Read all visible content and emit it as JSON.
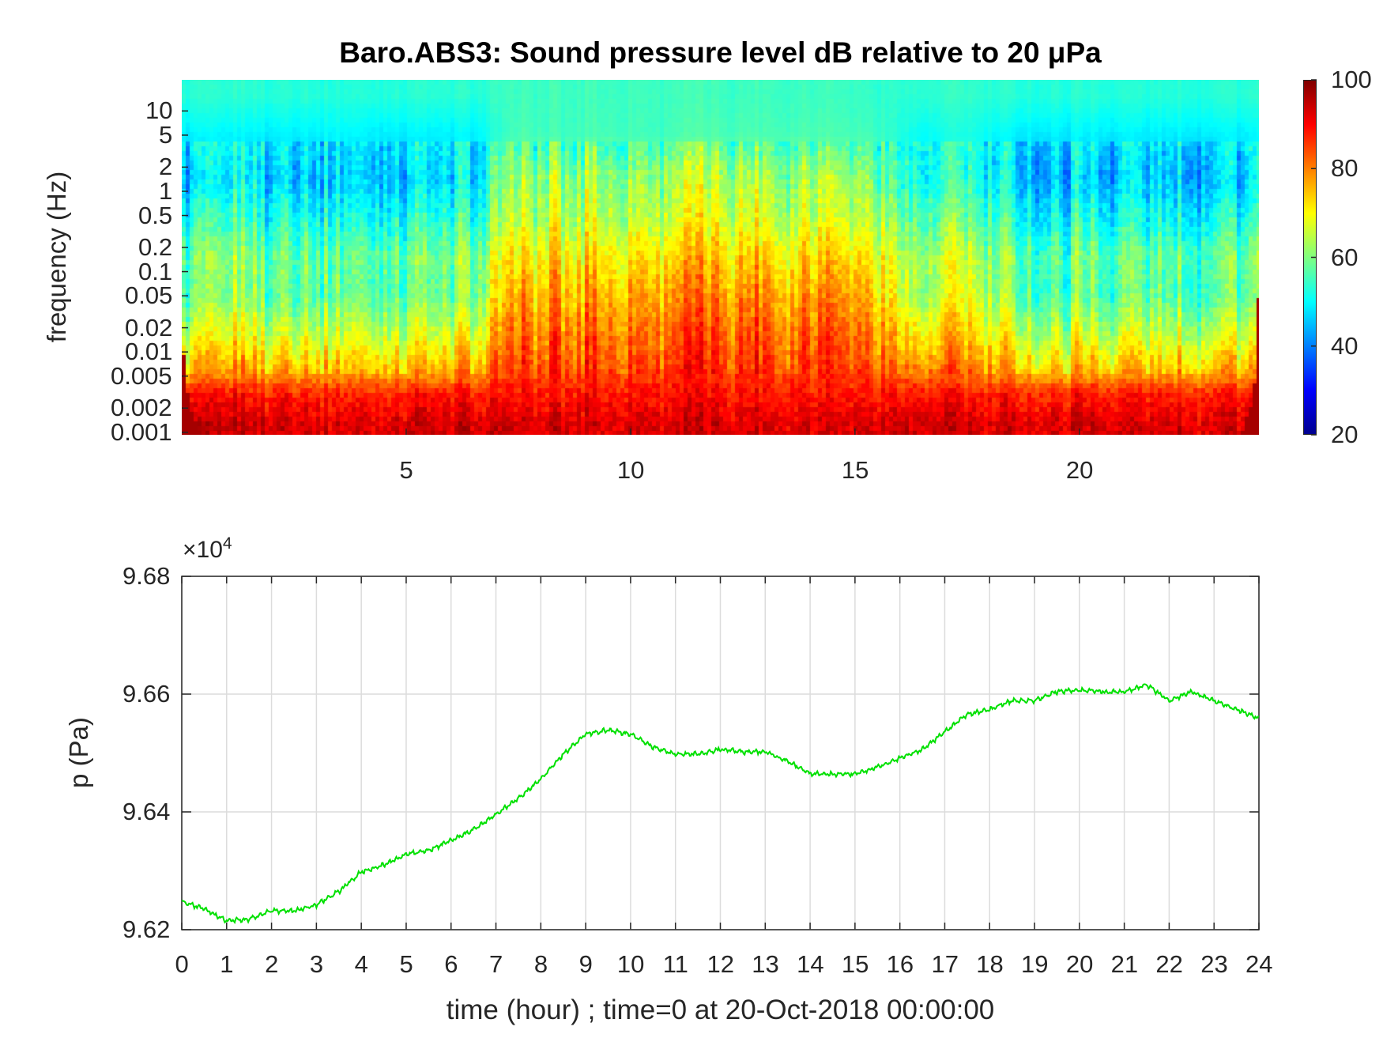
{
  "chart_data": [
    {
      "type": "heatmap",
      "title": "Baro.ABS3: Sound pressure level dB relative to 20 μPa",
      "xlabel": "",
      "ylabel": "frequency (Hz)",
      "xlim": [
        0,
        24
      ],
      "x_ticks": [
        "5",
        "10",
        "15",
        "20"
      ],
      "x_tick_values": [
        5,
        10,
        15,
        20
      ],
      "ylim": [
        0.00093,
        24.4
      ],
      "yscale": "log",
      "y_ticks": [
        "0.001",
        "0.002",
        "0.005",
        "0.01",
        "0.02",
        "0.05",
        "0.1",
        "0.2",
        "0.5",
        "1",
        "2",
        "5",
        "10"
      ],
      "y_tick_values": [
        0.001,
        0.002,
        0.005,
        0.01,
        0.02,
        0.05,
        0.1,
        0.2,
        0.5,
        1,
        2,
        5,
        10
      ],
      "colorbar": {
        "range": [
          20,
          100
        ],
        "ticks": [
          "20",
          "40",
          "60",
          "80",
          "100"
        ],
        "tick_values": [
          20,
          40,
          60,
          80,
          100
        ],
        "colormap": "jet"
      },
      "time_bin_centers_hour": [
        0.5,
        1.5,
        2.5,
        3.5,
        4.5,
        5.5,
        6.5,
        7.5,
        8.5,
        9.5,
        10.5,
        11.5,
        12.5,
        13.5,
        14.5,
        15.5,
        16.5,
        17.5,
        18.5,
        19.5,
        20.5,
        21.5,
        22.5,
        23.5
      ],
      "freq_bands_hz": [
        15,
        5,
        1.5,
        0.4,
        0.15,
        0.05,
        0.015,
        0.006,
        0.003,
        0.0013
      ],
      "level_db": [
        [
          53,
          53,
          53,
          53,
          53,
          53,
          53,
          55,
          55,
          55,
          55,
          55,
          55,
          55,
          55,
          54,
          53,
          54,
          53,
          53,
          53,
          53,
          53,
          53
        ],
        [
          49,
          49,
          49,
          50,
          49,
          49,
          49,
          56,
          55,
          56,
          55,
          56,
          56,
          56,
          56,
          55,
          50,
          52,
          49,
          49,
          49,
          49,
          49,
          49
        ],
        [
          45,
          47,
          45,
          48,
          47,
          45,
          47,
          63,
          62,
          63,
          62,
          63,
          65,
          63,
          65,
          60,
          48,
          54,
          47,
          45,
          45,
          47,
          45,
          45
        ],
        [
          52,
          53,
          52,
          54,
          53,
          52,
          53,
          67,
          66,
          67,
          66,
          67,
          69,
          67,
          69,
          65,
          54,
          60,
          53,
          52,
          52,
          53,
          52,
          52
        ],
        [
          58,
          59,
          58,
          60,
          59,
          58,
          59,
          73,
          72,
          73,
          72,
          73,
          75,
          73,
          75,
          71,
          60,
          66,
          59,
          58,
          58,
          59,
          58,
          58
        ],
        [
          57,
          59,
          57,
          60,
          59,
          57,
          59,
          78,
          77,
          78,
          77,
          78,
          80,
          78,
          80,
          75,
          60,
          68,
          59,
          57,
          57,
          59,
          57,
          57
        ],
        [
          66,
          68,
          66,
          69,
          68,
          66,
          68,
          83,
          82,
          83,
          82,
          83,
          85,
          83,
          85,
          80,
          69,
          75,
          68,
          66,
          66,
          68,
          66,
          66
        ],
        [
          75,
          76,
          75,
          77,
          76,
          75,
          76,
          86,
          85,
          86,
          85,
          86,
          87,
          86,
          87,
          84,
          77,
          81,
          76,
          75,
          75,
          76,
          75,
          75
        ],
        [
          88,
          88,
          88,
          88,
          88,
          88,
          88,
          89,
          89,
          89,
          89,
          89,
          89,
          89,
          89,
          89,
          88,
          88,
          88,
          88,
          88,
          88,
          88,
          88
        ],
        [
          93,
          93,
          93,
          93,
          93,
          93,
          93,
          93,
          93,
          93,
          93,
          93,
          93,
          93,
          93,
          93,
          93,
          93,
          93,
          93,
          93,
          93,
          93,
          93
        ]
      ]
    },
    {
      "type": "line",
      "xlabel": "time (hour) ; time=0 at 20-Oct-2018 00:00:00",
      "ylabel": "p (Pa)",
      "exponent_label": "×10",
      "exponent": "4",
      "xlim": [
        0,
        24
      ],
      "ylim": [
        96200,
        96800
      ],
      "grid": true,
      "x_ticks": [
        "0",
        "1",
        "2",
        "3",
        "4",
        "5",
        "6",
        "7",
        "8",
        "9",
        "10",
        "11",
        "12",
        "13",
        "14",
        "15",
        "16",
        "17",
        "18",
        "19",
        "20",
        "21",
        "22",
        "23",
        "24"
      ],
      "y_ticks": [
        "9.62",
        "9.64",
        "9.66",
        "9.68"
      ],
      "y_tick_values": [
        96200,
        96400,
        96600,
        96800
      ],
      "series": [
        {
          "name": "p",
          "color": "#00e000",
          "x": [
            0,
            0.5,
            1,
            1.5,
            2,
            2.5,
            3,
            3.5,
            4,
            4.5,
            5,
            5.5,
            6,
            6.5,
            7,
            7.5,
            8,
            8.5,
            9,
            9.5,
            10,
            10.5,
            11,
            11.5,
            12,
            12.5,
            13,
            13.5,
            14,
            14.5,
            15,
            15.5,
            16,
            16.5,
            17,
            17.5,
            18,
            18.5,
            19,
            19.5,
            20,
            20.5,
            21,
            21.5,
            22,
            22.5,
            23,
            23.5,
            24
          ],
          "y": [
            96248,
            96235,
            96215,
            96218,
            96232,
            96232,
            96242,
            96265,
            96298,
            96310,
            96328,
            96335,
            96351,
            96370,
            96396,
            96423,
            96456,
            96498,
            96532,
            96539,
            96532,
            96510,
            96498,
            96498,
            96506,
            96502,
            96502,
            96486,
            96465,
            96464,
            96464,
            96476,
            96491,
            96506,
            96536,
            96566,
            96574,
            96589,
            96589,
            96604,
            96607,
            96604,
            96604,
            96616,
            96589,
            96604,
            96589,
            96574,
            96559
          ]
        }
      ]
    }
  ]
}
